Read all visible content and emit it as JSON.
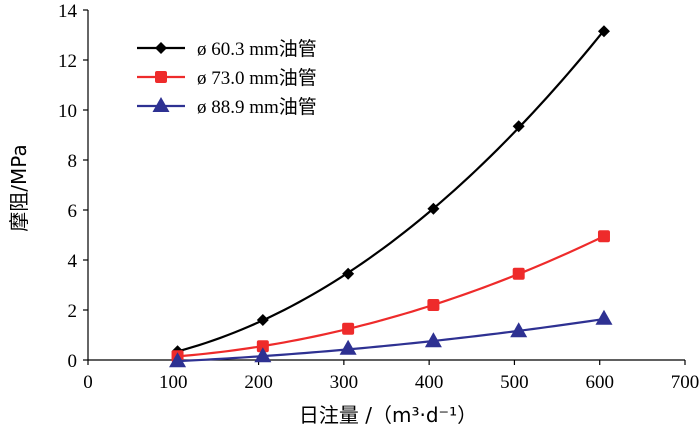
{
  "chart_data": {
    "type": "line",
    "xlabel": "日注量 /（m³·d⁻¹）",
    "ylabel": "摩阻/MPa",
    "xlim": [
      0,
      700
    ],
    "ylim": [
      0,
      14
    ],
    "x_ticks": [
      0,
      100,
      200,
      300,
      400,
      500,
      600,
      700
    ],
    "y_ticks": [
      0,
      2,
      4,
      6,
      8,
      10,
      12,
      14
    ],
    "grid": false,
    "legend_position": "top-left",
    "series": [
      {
        "name": "ø 60.3 mm油管",
        "marker": "diamond",
        "color": "#000000",
        "x": [
          105,
          205,
          305,
          405,
          505,
          605
        ],
        "y": [
          0.35,
          1.6,
          3.45,
          6.05,
          9.35,
          13.15
        ]
      },
      {
        "name": "ø 73.0 mm油管",
        "marker": "square",
        "color": "#ee2b2b",
        "x": [
          105,
          205,
          305,
          405,
          505,
          605
        ],
        "y": [
          0.15,
          0.55,
          1.25,
          2.2,
          3.45,
          4.95
        ]
      },
      {
        "name": "ø 88.9 mm油管",
        "marker": "triangle",
        "color": "#2e3192",
        "x": [
          105,
          205,
          305,
          405,
          505,
          605
        ],
        "y": [
          -0.05,
          0.15,
          0.45,
          0.75,
          1.15,
          1.65
        ]
      }
    ]
  }
}
